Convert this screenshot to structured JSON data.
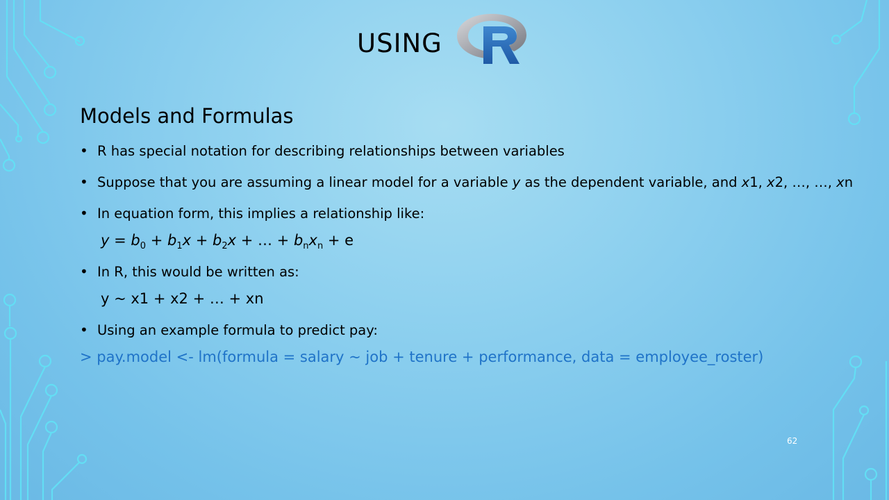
{
  "title": {
    "text": "USING",
    "logo_letter": "R"
  },
  "heading": "Models and Formulas",
  "bullets": {
    "b1": "R has special notation for describing relationships between variables",
    "b2_pre": "Suppose that you are assuming a linear model for a variable ",
    "b2_y": "y",
    "b2_mid": " as the dependent variable, and ",
    "b2_x1": "x",
    "b2_x1n": "1, ",
    "b2_x2": "x",
    "b2_x2n": "2, …, …, ",
    "b2_xn": "x",
    "b2_xnn": "n",
    "b3": "In equation form, this implies a relationship like:",
    "b4": "In R, this would be written as:",
    "b5": "Using an example formula to predict pay:"
  },
  "equation": {
    "y": "y",
    "eq": " = ",
    "b0": "b",
    "b0_sub": "0",
    "plus1": " + ",
    "b1": "b",
    "b1_sub": "1",
    "x1": "x",
    "plus2": " + ",
    "b2": "b",
    "b2_sub": "2",
    "x2": "x",
    "plus3": " + … + ",
    "bn": "b",
    "bn_sub": "n",
    "xn": "x",
    "xn_sub": "n",
    "tail": " + e"
  },
  "r_formula": "y ~ x1 + x2 + … + xn",
  "code_line": "> pay.model <- lm(formula = salary ~ job + tenure + performance, data = employee_roster)",
  "slide_number": "62",
  "colors": {
    "code": "#1f73c8",
    "circuit": "#5fe0f5"
  }
}
